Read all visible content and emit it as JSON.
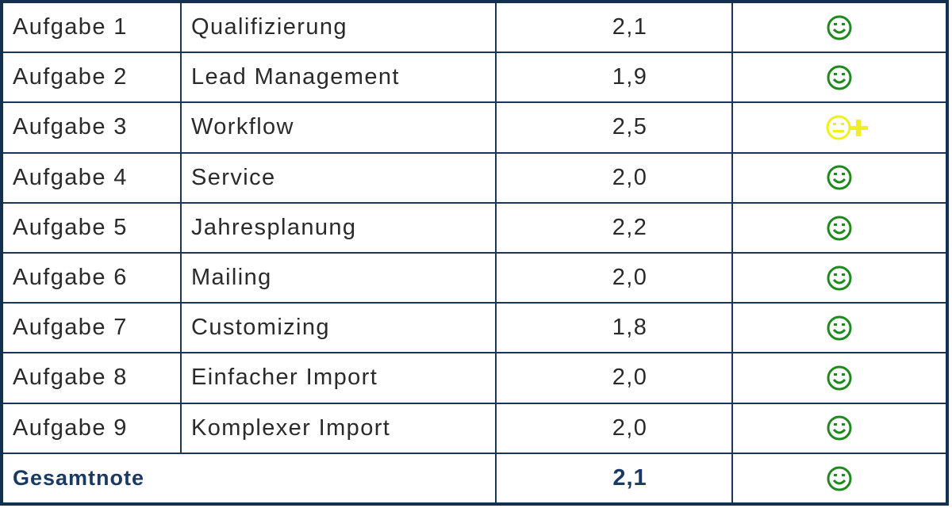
{
  "colors": {
    "border": "#13304f",
    "text": "#2a2a2a",
    "total_text": "#1b3a63",
    "happy": "#1e8a1e",
    "neutral": "#f0f020"
  },
  "rows": [
    {
      "task": "Aufgabe 1",
      "name": "Qualifizierung",
      "grade": "2,1",
      "icon": "happy-smiley-icon"
    },
    {
      "task": "Aufgabe 2",
      "name": "Lead Management",
      "grade": "1,9",
      "icon": "happy-smiley-icon"
    },
    {
      "task": "Aufgabe 3",
      "name": "Workflow",
      "grade": "2,5",
      "icon": "neutral-plus-smiley-icon"
    },
    {
      "task": "Aufgabe 4",
      "name": "Service",
      "grade": "2,0",
      "icon": "happy-smiley-icon"
    },
    {
      "task": "Aufgabe 5",
      "name": "Jahresplanung",
      "grade": "2,2",
      "icon": "happy-smiley-icon"
    },
    {
      "task": "Aufgabe 6",
      "name": "Mailing",
      "grade": "2,0",
      "icon": "happy-smiley-icon"
    },
    {
      "task": "Aufgabe 7",
      "name": "Customizing",
      "grade": "1,8",
      "icon": "happy-smiley-icon"
    },
    {
      "task": "Aufgabe 8",
      "name": "Einfacher Import",
      "grade": "2,0",
      "icon": "happy-smiley-icon"
    },
    {
      "task": "Aufgabe 9",
      "name": "Komplexer Import",
      "grade": "2,0",
      "icon": "happy-smiley-icon"
    }
  ],
  "total": {
    "label": "Gesamtnote",
    "grade": "2,1",
    "icon": "happy-smiley-icon"
  }
}
